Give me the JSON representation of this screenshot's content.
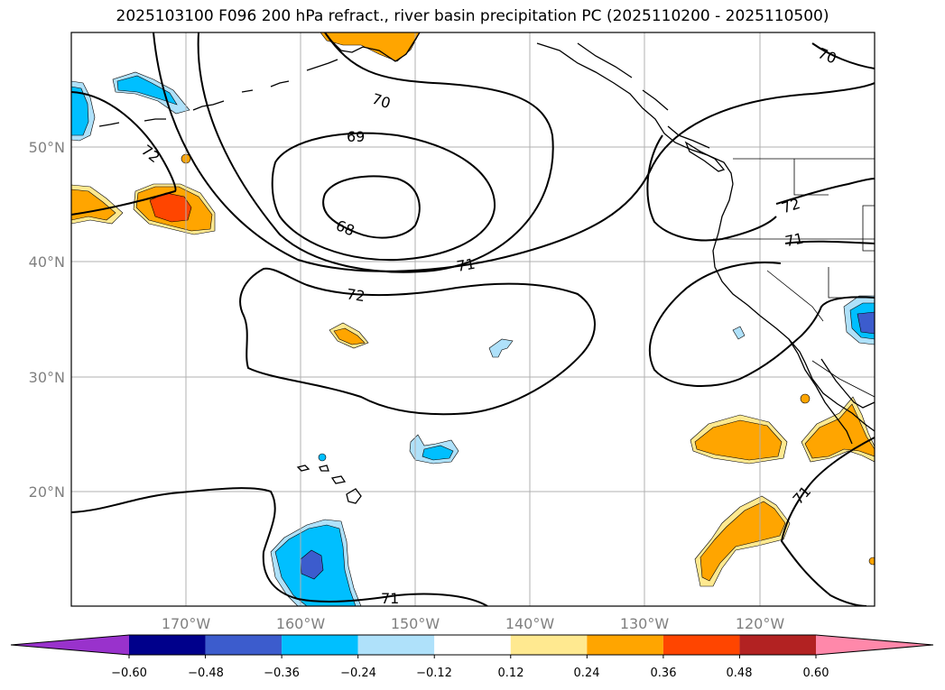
{
  "title": "2025103100 F096 200 hPa refract., river basin precipitation PC (2025110200 - 2025110500)",
  "map": {
    "lon_range": [
      -180,
      -110
    ],
    "lat_range": [
      10,
      60
    ],
    "lat_labels": [
      "20°N",
      "30°N",
      "40°N",
      "50°N"
    ],
    "lon_labels": [
      "170°W",
      "160°W",
      "150°W",
      "140°W",
      "130°W",
      "120°W"
    ],
    "grid": true,
    "contour_labels": {
      "c70a": "70",
      "c70b": "70",
      "c69": "69",
      "c68": "68",
      "c71a": "71",
      "c72a": "72",
      "c72b": "72",
      "c72c": "72",
      "c71b": "71",
      "c71c": "71",
      "c71d": "71"
    }
  },
  "colorbar": {
    "colors": [
      "#9932cc",
      "#00008b",
      "#3c5ccd",
      "#00bfff",
      "#afe1fa",
      "#ffffff",
      "#ffe990",
      "#ffa500",
      "#ff4500",
      "#b22222",
      "#ff88aa"
    ],
    "tick_labels": [
      "−0.60",
      "−0.48",
      "−0.36",
      "−0.24",
      "−0.12",
      "0.12",
      "0.24",
      "0.36",
      "0.48",
      "0.60"
    ],
    "levels": [
      -0.6,
      -0.48,
      -0.36,
      -0.24,
      -0.12,
      0.12,
      0.24,
      0.36,
      0.48,
      0.6
    ],
    "extend": "both"
  }
}
